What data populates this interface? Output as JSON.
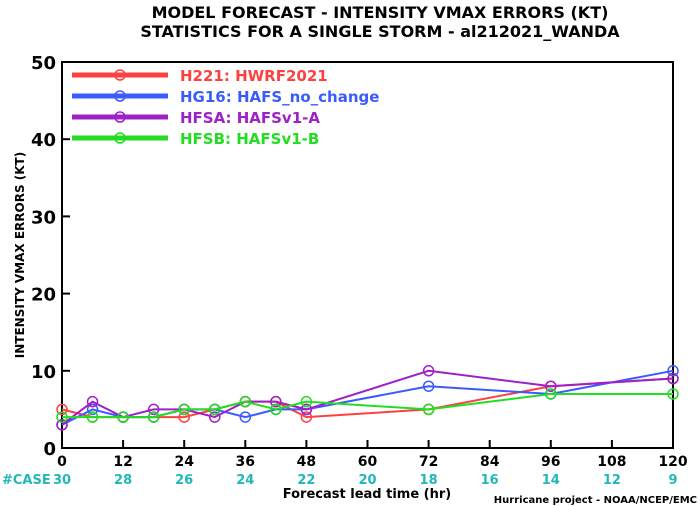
{
  "chart_data": {
    "type": "line",
    "title_line1": "MODEL FORECAST - INTENSITY VMAX ERRORS (KT)",
    "title_line2": "STATISTICS FOR A SINGLE STORM - al212021_WANDA",
    "ylabel": "INTENSITY VMAX ERRORS (KT)",
    "xlabel": "Forecast lead time (hr)",
    "credit": "Hurricane project - NOAA/NCEP/EMC",
    "case_label": "#CASE",
    "xlim": [
      0,
      120
    ],
    "ylim": [
      0,
      50
    ],
    "xticks": [
      0,
      12,
      24,
      36,
      48,
      60,
      72,
      84,
      96,
      108,
      120
    ],
    "yticks": [
      0,
      10,
      20,
      30,
      40,
      50
    ],
    "case_counts": [
      30,
      28,
      26,
      24,
      22,
      20,
      18,
      16,
      14,
      12,
      9
    ],
    "legend_position": "top-left",
    "grid": false,
    "series": [
      {
        "name": "H221: HWRF2021",
        "color": "#ff4040",
        "x": [
          0,
          6,
          12,
          18,
          24,
          30,
          36,
          42,
          48,
          72,
          96,
          120
        ],
        "y": [
          5,
          4,
          4,
          4,
          4,
          5,
          6,
          6,
          4,
          5,
          8,
          9
        ]
      },
      {
        "name": "HG16: HAFS_no_change",
        "color": "#3b5bff",
        "x": [
          0,
          6,
          12,
          18,
          24,
          30,
          36,
          42,
          48,
          72,
          96,
          120
        ],
        "y": [
          3,
          5,
          4,
          4,
          5,
          5,
          4,
          5,
          5,
          8,
          7,
          10
        ]
      },
      {
        "name": "HFSA: HAFSv1-A",
        "color": "#a020c8",
        "x": [
          0,
          6,
          12,
          18,
          24,
          30,
          36,
          42,
          48,
          72,
          96,
          120
        ],
        "y": [
          3,
          6,
          4,
          5,
          5,
          4,
          6,
          6,
          5,
          10,
          8,
          9
        ]
      },
      {
        "name": "HFSB: HAFSv1-B",
        "color": "#22dd22",
        "x": [
          0,
          6,
          12,
          18,
          24,
          30,
          36,
          42,
          48,
          72,
          96,
          120
        ],
        "y": [
          4,
          4,
          4,
          4,
          5,
          5,
          6,
          5,
          6,
          5,
          7,
          7
        ]
      }
    ],
    "colors": {
      "case_text": "#20b8b8",
      "axis": "#000000"
    }
  }
}
